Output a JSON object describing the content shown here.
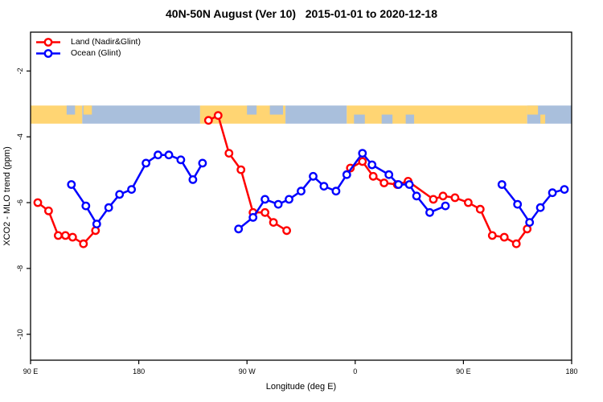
{
  "chart_data": {
    "type": "line",
    "title": "40N-50N August (Ver 10)   2015-01-01 to 2020-12-18",
    "xlabel": "Longitude (deg E)",
    "ylabel": "XCO2 - MLO trend (ppm)",
    "x_ticks": [
      {
        "value": 90,
        "label": "90 E"
      },
      {
        "value": 180,
        "label": "180"
      },
      {
        "value": 270,
        "label": "90 W"
      },
      {
        "value": 360,
        "label": "0"
      },
      {
        "value": 450,
        "label": "90 E"
      },
      {
        "value": 540,
        "label": "180"
      }
    ],
    "y_ticks": [
      -2,
      -4,
      -6,
      -8,
      -10
    ],
    "xlim": [
      90,
      540
    ],
    "ylim": [
      -10.8,
      -0.8
    ],
    "x_axis_note": "longitude increases eastward and wraps: 90E, 180, 90W, 0, 90E, 180",
    "legend_position": "top-left",
    "grid": false,
    "series": [
      {
        "name": "Land (Nadir&Glint)",
        "color": "#ff0000",
        "marker": "open-circle",
        "segments": [
          [
            [
              96,
              -6.0
            ],
            [
              105,
              -6.25
            ],
            [
              113,
              -7.0
            ],
            [
              119,
              -7.0
            ],
            [
              125,
              -7.05
            ],
            [
              134,
              -7.25
            ],
            [
              144,
              -6.85
            ]
          ],
          [
            [
              238,
              -3.5
            ],
            [
              246,
              -3.35
            ],
            [
              255,
              -4.5
            ],
            [
              265,
              -5.0
            ],
            [
              275,
              -6.3
            ],
            [
              285,
              -6.3
            ],
            [
              292,
              -6.6
            ],
            [
              303,
              -6.85
            ]
          ],
          [
            [
              356,
              -4.95
            ],
            [
              366,
              -4.75
            ],
            [
              375,
              -5.2
            ],
            [
              384,
              -5.4
            ],
            [
              395,
              -5.45
            ],
            [
              404,
              -5.35
            ],
            [
              425,
              -5.9
            ],
            [
              433,
              -5.8
            ],
            [
              443,
              -5.85
            ],
            [
              454,
              -6.0
            ],
            [
              464,
              -6.2
            ],
            [
              474,
              -7.0
            ],
            [
              484,
              -7.05
            ],
            [
              494,
              -7.25
            ],
            [
              503,
              -6.8
            ]
          ]
        ]
      },
      {
        "name": "Ocean (Glint)",
        "color": "#0000ff",
        "marker": "open-circle",
        "segments": [
          [
            [
              124,
              -5.45
            ],
            [
              136,
              -6.1
            ],
            [
              145,
              -6.65
            ],
            [
              155,
              -6.15
            ],
            [
              164,
              -5.75
            ],
            [
              174,
              -5.6
            ],
            [
              186,
              -4.8
            ],
            [
              196,
              -4.55
            ],
            [
              205,
              -4.55
            ],
            [
              215,
              -4.7
            ],
            [
              225,
              -5.3
            ],
            [
              233,
              -4.8
            ]
          ],
          [
            [
              263,
              -6.8
            ],
            [
              275,
              -6.45
            ],
            [
              285,
              -5.9
            ],
            [
              296,
              -6.05
            ],
            [
              305,
              -5.9
            ],
            [
              315,
              -5.65
            ],
            [
              325,
              -5.2
            ],
            [
              334,
              -5.5
            ],
            [
              344,
              -5.65
            ],
            [
              353,
              -5.15
            ],
            [
              366,
              -4.5
            ],
            [
              374,
              -4.85
            ],
            [
              388,
              -5.15
            ],
            [
              396,
              -5.45
            ],
            [
              405,
              -5.45
            ],
            [
              411,
              -5.8
            ],
            [
              422,
              -6.3
            ],
            [
              435,
              -6.1
            ]
          ],
          [
            [
              482,
              -5.45
            ],
            [
              495,
              -6.05
            ],
            [
              505,
              -6.6
            ],
            [
              514,
              -6.15
            ],
            [
              524,
              -5.7
            ],
            [
              534,
              -5.6
            ]
          ]
        ]
      }
    ],
    "map_band": {
      "description": "world-map strip of land/ocean along the longitude axis",
      "value_range": [
        -3.6,
        -3.05
      ],
      "land_color": "#ffd573",
      "ocean_color": "#a9bfdc",
      "segments": [
        {
          "from": 90,
          "to": 133,
          "surface": "land"
        },
        {
          "from": 133,
          "to": 231,
          "surface": "ocean"
        },
        {
          "from": 231,
          "to": 302,
          "surface": "land"
        },
        {
          "from": 302,
          "to": 353,
          "surface": "ocean"
        },
        {
          "from": 353,
          "to": 503,
          "surface": "land"
        },
        {
          "from": 503,
          "to": 540,
          "surface": "ocean"
        }
      ],
      "patches": [
        {
          "from": 120,
          "to": 127,
          "surface": "ocean",
          "part": "top"
        },
        {
          "from": 134,
          "to": 141,
          "surface": "land",
          "part": "top"
        },
        {
          "from": 270,
          "to": 278,
          "surface": "ocean",
          "part": "top"
        },
        {
          "from": 289,
          "to": 300,
          "surface": "ocean",
          "part": "top"
        },
        {
          "from": 359,
          "to": 368,
          "surface": "ocean",
          "part": "bottom"
        },
        {
          "from": 382,
          "to": 391,
          "surface": "ocean",
          "part": "bottom"
        },
        {
          "from": 402,
          "to": 409,
          "surface": "ocean",
          "part": "bottom"
        },
        {
          "from": 503,
          "to": 512,
          "surface": "land",
          "part": "top"
        },
        {
          "from": 514,
          "to": 518,
          "surface": "land",
          "part": "bottom"
        }
      ]
    }
  }
}
